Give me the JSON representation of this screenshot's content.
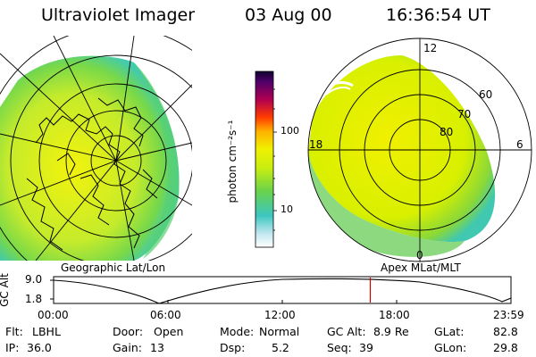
{
  "header": {
    "instrument": "Ultraviolet Imager",
    "date": "03 Aug 00",
    "time": "16:36:54 UT"
  },
  "colorbar": {
    "unit_label": "photon cm⁻²s⁻¹",
    "ticks": [
      "100",
      "10"
    ]
  },
  "geo_panel": {
    "label": "Geographic Lat/Lon"
  },
  "apex_panel": {
    "label": "Apex MLat/MLT",
    "lat_labels": [
      "60",
      "70",
      "80"
    ],
    "mlt_labels": [
      "12",
      "18",
      "6",
      "0"
    ]
  },
  "orbit": {
    "ylabel": "GC Alt",
    "y_ticks": [
      "9.0",
      "1.8"
    ],
    "x_ticks": [
      "00:00",
      "06:00",
      "12:00",
      "18:00",
      "23:59"
    ],
    "cursor_time": "16:36:54"
  },
  "status": {
    "flt_label": "Flt:",
    "flt_value": "LBHL",
    "ip_label": "IP:",
    "ip_value": "36.0",
    "door_label": "Door:",
    "door_value": "Open",
    "gain_label": "Gain:",
    "gain_value": "13",
    "mode_label": "Mode:",
    "mode_value": "Normal",
    "dsp_label": "Dsp:",
    "dsp_value": "5.2",
    "gcalt_label": "GC Alt:",
    "gcalt_value": "8.9 Re",
    "seq_label": "Seq:",
    "seq_value": "39",
    "glat_label": "GLat:",
    "glat_value": "82.8",
    "glon_label": "GLon:",
    "glon_value": "29.8"
  },
  "colors": {
    "background": "#ffffff",
    "cursor_line": "#cc0000",
    "aurora_core": "#e8f000",
    "aurora_mid": "#8bdc30",
    "aurora_edge": "#34c8a0"
  }
}
